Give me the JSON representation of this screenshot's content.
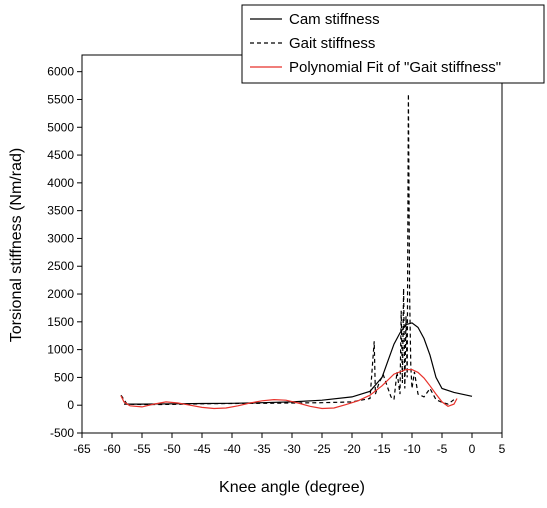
{
  "chart_data": {
    "type": "line",
    "title": "",
    "xlabel": "Knee angle (degree)",
    "ylabel": "Torsional stiffness (Nm/rad)",
    "xlim": [
      -65,
      5
    ],
    "ylim": [
      -500,
      6300
    ],
    "x_ticks": [
      -65,
      -60,
      -55,
      -50,
      -45,
      -40,
      -35,
      -30,
      -25,
      -20,
      -15,
      -10,
      -5,
      0,
      5
    ],
    "y_ticks": [
      -500,
      0,
      500,
      1000,
      1500,
      2000,
      2500,
      3000,
      3500,
      4000,
      4500,
      5000,
      5500,
      6000
    ],
    "legend_position": "top-right",
    "grid": false,
    "series": [
      {
        "name": "Cam stiffness",
        "style": "solid",
        "color": "#000000",
        "points": [
          [
            -58,
            20
          ],
          [
            -55,
            20
          ],
          [
            -50,
            25
          ],
          [
            -45,
            30
          ],
          [
            -40,
            35
          ],
          [
            -35,
            45
          ],
          [
            -30,
            60
          ],
          [
            -25,
            90
          ],
          [
            -20,
            150
          ],
          [
            -17,
            250
          ],
          [
            -15,
            500
          ],
          [
            -14,
            800
          ],
          [
            -13,
            1100
          ],
          [
            -12,
            1300
          ],
          [
            -11,
            1450
          ],
          [
            -10,
            1480
          ],
          [
            -9,
            1400
          ],
          [
            -8,
            1200
          ],
          [
            -7,
            900
          ],
          [
            -6,
            500
          ],
          [
            -5,
            300
          ],
          [
            -3,
            230
          ],
          [
            0,
            160
          ]
        ]
      },
      {
        "name": "Gait stiffness",
        "style": "dashed",
        "color": "#000000",
        "points": [
          [
            -58.5,
            180
          ],
          [
            -57.5,
            20
          ],
          [
            -55,
            10
          ],
          [
            -50,
            15
          ],
          [
            -45,
            25
          ],
          [
            -40,
            30
          ],
          [
            -35,
            35
          ],
          [
            -30,
            40
          ],
          [
            -25,
            45
          ],
          [
            -20,
            60
          ],
          [
            -17,
            120
          ],
          [
            -16.3,
            1150
          ],
          [
            -16.1,
            200
          ],
          [
            -15.5,
            400
          ],
          [
            -14.8,
            550
          ],
          [
            -14,
            300
          ],
          [
            -13.5,
            150
          ],
          [
            -13,
            100
          ],
          [
            -12.5,
            600
          ],
          [
            -12,
            200
          ],
          [
            -11.8,
            1700
          ],
          [
            -11.6,
            400
          ],
          [
            -11.4,
            2100
          ],
          [
            -11.2,
            300
          ],
          [
            -11,
            1600
          ],
          [
            -10.8,
            500
          ],
          [
            -10.6,
            5600
          ],
          [
            -10.4,
            2000
          ],
          [
            -10.2,
            700
          ],
          [
            -10,
            300
          ],
          [
            -9.6,
            600
          ],
          [
            -9,
            200
          ],
          [
            -8,
            150
          ],
          [
            -7,
            300
          ],
          [
            -6,
            100
          ],
          [
            -5,
            50
          ],
          [
            -4,
            20
          ],
          [
            -3,
            100
          ]
        ]
      },
      {
        "name": "Polynomial Fit of \"Gait stiffness\"",
        "style": "solid",
        "color": "#e8322b",
        "points": [
          [
            -58.5,
            170
          ],
          [
            -58,
            60
          ],
          [
            -57,
            -10
          ],
          [
            -55,
            -30
          ],
          [
            -53,
            20
          ],
          [
            -51,
            60
          ],
          [
            -49,
            40
          ],
          [
            -47,
            0
          ],
          [
            -45,
            -40
          ],
          [
            -43,
            -60
          ],
          [
            -41,
            -50
          ],
          [
            -39,
            -10
          ],
          [
            -37,
            40
          ],
          [
            -35,
            80
          ],
          [
            -33,
            100
          ],
          [
            -31,
            90
          ],
          [
            -29,
            40
          ],
          [
            -27,
            -20
          ],
          [
            -25,
            -60
          ],
          [
            -23,
            -50
          ],
          [
            -21,
            10
          ],
          [
            -19,
            80
          ],
          [
            -17,
            180
          ],
          [
            -15,
            350
          ],
          [
            -13,
            560
          ],
          [
            -11,
            640
          ],
          [
            -10,
            640
          ],
          [
            -9,
            590
          ],
          [
            -8,
            490
          ],
          [
            -7,
            350
          ],
          [
            -6,
            200
          ],
          [
            -5,
            60
          ],
          [
            -4,
            -20
          ],
          [
            -3,
            20
          ],
          [
            -2.5,
            120
          ]
        ]
      }
    ]
  }
}
